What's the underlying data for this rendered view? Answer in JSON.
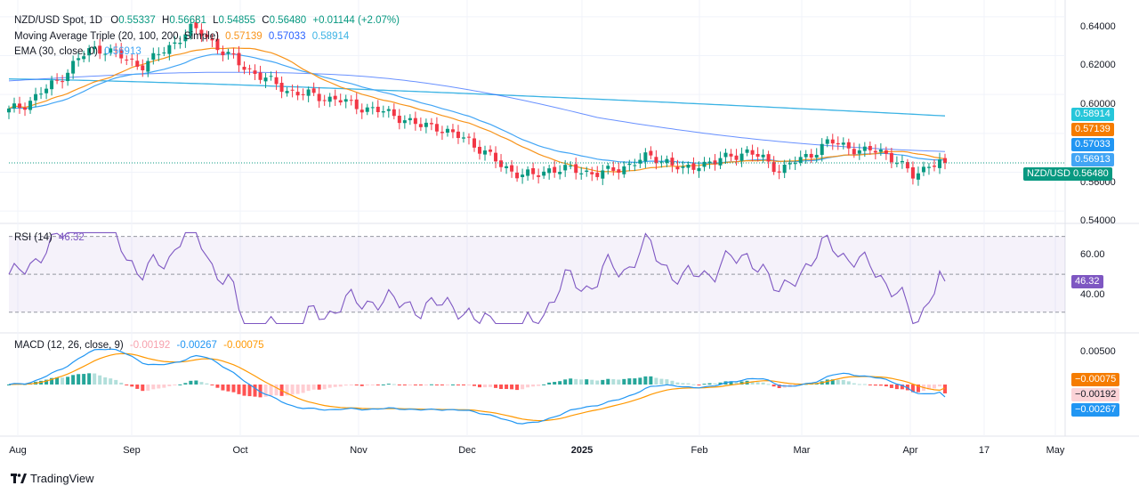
{
  "header": {
    "symbol": "NZD/USD Spot, 1D",
    "open_label": "O",
    "open": "0.55337",
    "high_label": "H",
    "high": "0.56681",
    "low_label": "L",
    "low": "0.54855",
    "close_label": "C",
    "close": "0.56480",
    "change": "+0.01144 (+2.07%)"
  },
  "legend": {
    "ma_label": "Moving Average Triple (20, 100, 200, Simple)",
    "ma20": "0.57139",
    "ma100": "0.57033",
    "ma200": "0.58914",
    "ema_label": "EMA (30, close, 0)",
    "ema": "0.56913",
    "rsi_label": "RSI (14)",
    "rsi": "46.32",
    "macd_label": "MACD (12, 26, close, 9)",
    "macd_hist": "-0.00192",
    "macd_line": "-0.00267",
    "macd_signal": "-0.00075"
  },
  "badges": {
    "ma200": "0.58914",
    "ma20": "0.57139",
    "ma100": "0.57033",
    "ema": "0.56913",
    "price": "NZD/USD 0.56480",
    "rsi": "46.32",
    "macd_signal": "−0.00075",
    "macd_hist": "−0.00192",
    "macd_line": "−0.00267"
  },
  "price_axis": [
    "0.64000",
    "0.62000",
    "0.60000",
    "0.58000",
    "0.56000",
    "0.54000"
  ],
  "rsi_axis": [
    "60.00",
    "40.00"
  ],
  "macd_axis": [
    "0.00500"
  ],
  "x_axis": [
    "Aug",
    "Sep",
    "Oct",
    "Nov",
    "Dec",
    "2025",
    "Jan",
    "Feb",
    "Mar",
    "Apr",
    "17",
    "May"
  ],
  "brand": "TradingView",
  "colors": {
    "up": "#089981",
    "down": "#f23645",
    "ma20": "#f7931a",
    "ma100": "#2962ff",
    "ma200": "#3bb3e4",
    "ema": "#42a5f5",
    "rsi": "#7e57c2",
    "macd_line": "#2196f3",
    "macd_signal": "#ff9800"
  },
  "chart_data": {
    "type": "candlestick",
    "title": "NZD/USD Spot, 1D",
    "x_range": [
      "2024-07-26",
      "2025-05-05"
    ],
    "price_ylim": [
      0.535,
      0.645
    ],
    "ohlc_anchor_close": [
      0.5915,
      0.5952,
      0.6012,
      0.6072,
      0.6165,
      0.6232,
      0.6235,
      0.6182,
      0.6148,
      0.6196,
      0.626,
      0.634,
      0.6302,
      0.6223,
      0.6158,
      0.611,
      0.6062,
      0.602,
      0.6001,
      0.5987,
      0.5975,
      0.5942,
      0.5928,
      0.5903,
      0.588,
      0.5835,
      0.584,
      0.5792,
      0.5765,
      0.5702,
      0.563,
      0.5595,
      0.5578,
      0.562,
      0.5612,
      0.5605,
      0.5591,
      0.5615,
      0.5648,
      0.5679,
      0.5662,
      0.5605,
      0.5645,
      0.5648,
      0.5692,
      0.57,
      0.5668,
      0.5606,
      0.566,
      0.5704,
      0.5755,
      0.5738,
      0.57,
      0.5718,
      0.566,
      0.558,
      0.564,
      0.5648
    ],
    "sma20_last": 0.57139,
    "sma100_last": 0.57033,
    "sma200_last": 0.58914,
    "ema30_last": 0.56913,
    "rsi": {
      "ylim": [
        20,
        75
      ],
      "upper": 70,
      "middle": 50,
      "lower": 30,
      "last": 46.32
    },
    "macd": {
      "last_line": -0.00267,
      "last_signal": -0.00075,
      "last_hist": -0.00192
    },
    "grid": true,
    "legend": "top-left"
  }
}
